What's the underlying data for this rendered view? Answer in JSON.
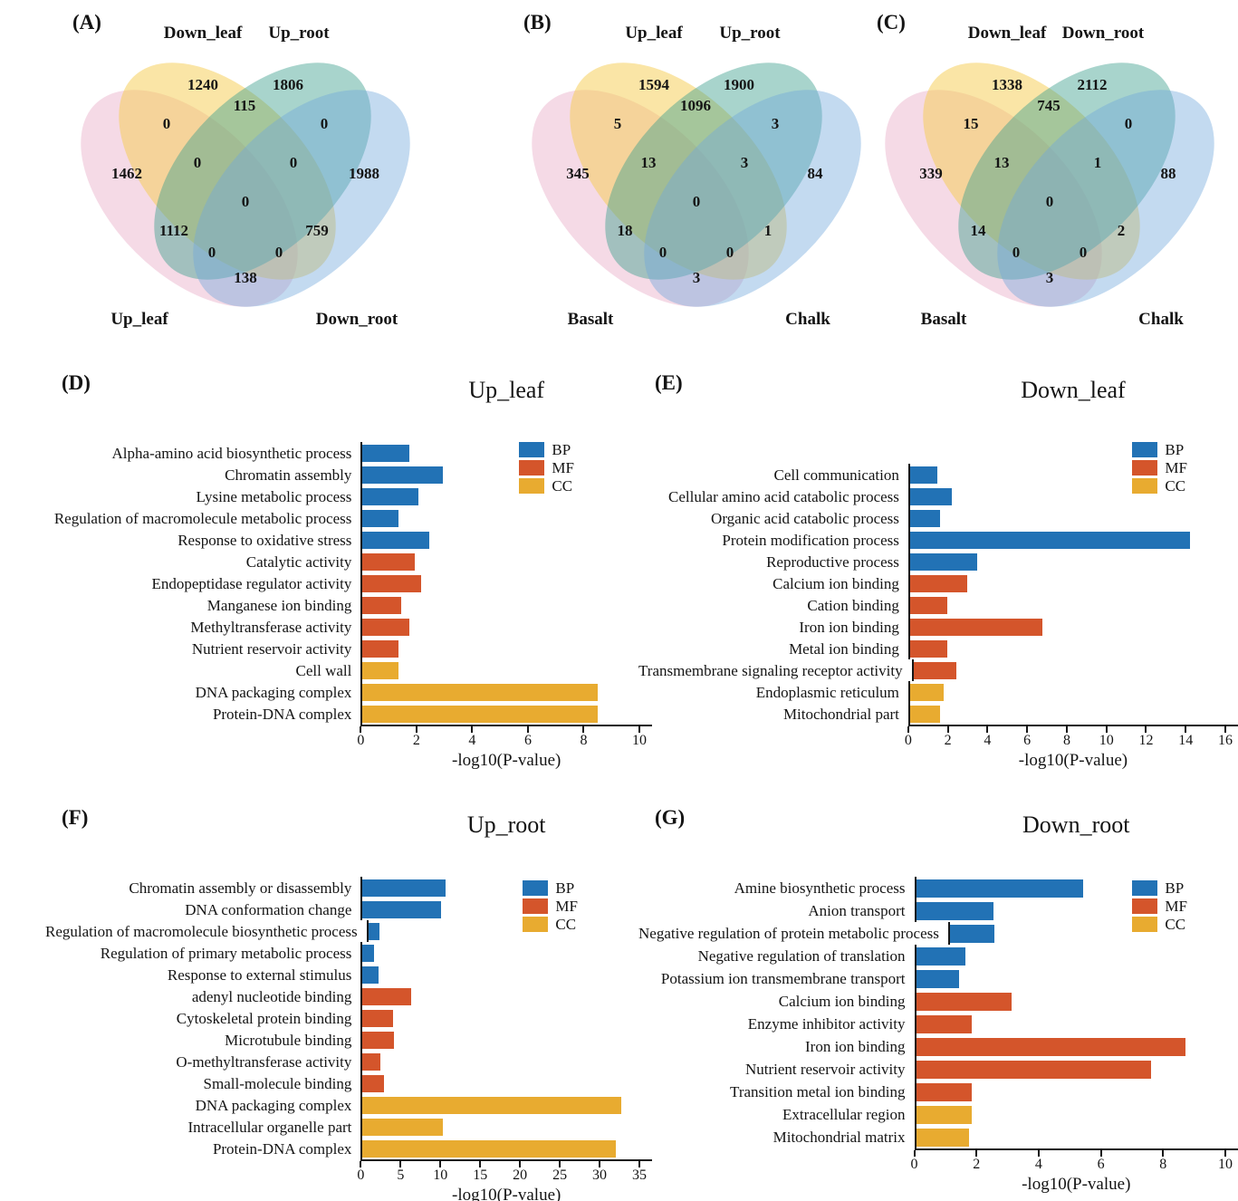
{
  "colors": {
    "BP": "#2272b5",
    "MF": "#d4552b",
    "CC": "#e8ab30",
    "venn": {
      "pink": "#e7a6c4",
      "yellow": "#f5ce55",
      "teal": "#3fa08e",
      "blue": "#6fa8dc"
    }
  },
  "venns": [
    {
      "letter": "(A)",
      "labels": {
        "top_left": "Down_leaf",
        "top_right": "Up_root",
        "bottom_left": "Up_leaf",
        "bottom_right": "Down_root"
      },
      "regions": {
        "tl_only": "1240",
        "tr_only": "1806",
        "tl_tr": "115",
        "bl_tl": "0",
        "tr_br": "0",
        "bl_only": "1462",
        "bl_tl_tr": "0",
        "tl_tr_br": "0",
        "br_only": "1988",
        "all": "0",
        "bl_tr": "1112",
        "tl_br": "759",
        "bl_tr_br": "0",
        "bl_tl_br": "0",
        "bl_br": "138"
      }
    },
    {
      "letter": "(B)",
      "labels": {
        "top_left": "Up_leaf",
        "top_right": "Up_root",
        "bottom_left": "Basalt",
        "bottom_right": "Chalk"
      },
      "regions": {
        "tl_only": "1594",
        "tr_only": "1900",
        "tl_tr": "1096",
        "bl_tl": "5",
        "tr_br": "3",
        "bl_only": "345",
        "bl_tl_tr": "13",
        "tl_tr_br": "3",
        "br_only": "84",
        "all": "0",
        "bl_tr": "18",
        "tl_br": "1",
        "bl_tr_br": "0",
        "bl_tl_br": "0",
        "bl_br": "3"
      }
    },
    {
      "letter": "(C)",
      "labels": {
        "top_left": "Down_leaf",
        "top_right": "Down_root",
        "bottom_left": "Basalt",
        "bottom_right": "Chalk"
      },
      "regions": {
        "tl_only": "1338",
        "tr_only": "2112",
        "tl_tr": "745",
        "bl_tl": "15",
        "tr_br": "0",
        "bl_only": "339",
        "bl_tl_tr": "13",
        "tl_tr_br": "1",
        "br_only": "88",
        "all": "0",
        "bl_tr": "14",
        "tl_br": "2",
        "bl_tr_br": "0",
        "bl_tl_br": "0",
        "bl_br": "3"
      }
    }
  ],
  "chart_data": [
    {
      "type": "bar",
      "panel": "(D)",
      "title": "Up_leaf",
      "xlabel": "-log10(P-value)",
      "xlim": [
        0,
        10
      ],
      "xticks": [
        0,
        2,
        4,
        6,
        8,
        10
      ],
      "legend": [
        "BP",
        "MF",
        "CC"
      ],
      "legend_position": "top-right",
      "categories": [
        "Alpha-amino acid biosynthetic process",
        "Chromatin assembly",
        "Lysine metabolic process",
        "Regulation of macromolecule metabolic process",
        "Response to oxidative stress",
        "Catalytic activity",
        "Endopeptidase regulator activity",
        "Manganese ion binding",
        "Methyltransferase activity",
        "Nutrient reservoir activity",
        "Cell wall",
        "DNA packaging complex",
        "Protein-DNA complex"
      ],
      "values": [
        1.7,
        2.9,
        2.0,
        1.3,
        2.4,
        1.9,
        2.1,
        1.4,
        1.7,
        1.3,
        1.3,
        8.5,
        8.5
      ],
      "groups": [
        "BP",
        "BP",
        "BP",
        "BP",
        "BP",
        "MF",
        "MF",
        "MF",
        "MF",
        "MF",
        "CC",
        "CC",
        "CC"
      ]
    },
    {
      "type": "bar",
      "panel": "(E)",
      "title": "Down_leaf",
      "xlabel": "-log10(P-value)",
      "xlim": [
        0,
        16
      ],
      "xticks": [
        0,
        2,
        4,
        6,
        8,
        10,
        12,
        14,
        16
      ],
      "legend": [
        "BP",
        "MF",
        "CC"
      ],
      "legend_position": "top-right",
      "categories": [
        "Cell communication",
        "Cellular amino acid catabolic process",
        "Organic acid catabolic process",
        "Protein modification process",
        "Reproductive process",
        "Calcium ion binding",
        "Cation binding",
        "Iron ion binding",
        "Metal ion binding",
        "Transmembrane signaling receptor activity",
        "Endoplasmic reticulum",
        "Mitochondrial part"
      ],
      "values": [
        1.4,
        2.1,
        1.5,
        14.2,
        3.4,
        2.9,
        1.9,
        6.7,
        1.9,
        2.2,
        1.7,
        1.5
      ],
      "groups": [
        "BP",
        "BP",
        "BP",
        "BP",
        "BP",
        "MF",
        "MF",
        "MF",
        "MF",
        "MF",
        "CC",
        "CC"
      ]
    },
    {
      "type": "bar",
      "panel": "(F)",
      "title": "Up_root",
      "xlabel": "-log10(P-value)",
      "xlim": [
        0,
        35
      ],
      "xticks": [
        0,
        5,
        10,
        15,
        20,
        25,
        30,
        35
      ],
      "legend": [
        "BP",
        "MF",
        "CC"
      ],
      "legend_position": "top-right",
      "categories": [
        "Chromatin assembly or disassembly",
        "DNA conformation change",
        "Regulation of  macromolecule biosynthetic process",
        "Regulation of primary metabolic process",
        "Response to external stimulus",
        "adenyl nucleotide binding",
        "Cytoskeletal protein binding",
        "Microtubule binding",
        "O-methyltransferase activity",
        "Small-molecule binding",
        "DNA packaging complex",
        "Intracellular organelle part",
        "Protein-DNA complex"
      ],
      "values": [
        10.5,
        9.9,
        1.5,
        1.4,
        2.0,
        6.1,
        3.9,
        4.0,
        2.3,
        2.7,
        32.7,
        10.1,
        32.0
      ],
      "groups": [
        "BP",
        "BP",
        "BP",
        "BP",
        "BP",
        "MF",
        "MF",
        "MF",
        "MF",
        "MF",
        "CC",
        "CC",
        "CC"
      ]
    },
    {
      "type": "bar",
      "panel": "(G)",
      "title": "Down_root",
      "xlabel": "-log10(P-value)",
      "xlim": [
        0,
        10
      ],
      "xticks": [
        0,
        2,
        4,
        6,
        8,
        10
      ],
      "legend": [
        "BP",
        "MF",
        "CC"
      ],
      "legend_position": "top-right",
      "categories": [
        "Amine biosynthetic process",
        "Anion transport",
        "Negative regulation of protein metabolic process",
        "Negative regulation of translation",
        "Potassium ion transmembrane transport",
        "Calcium ion binding",
        "Enzyme inhibitor activity",
        "Iron ion binding",
        "Nutrient reservoir activity",
        "Transition metal ion binding",
        "Extracellular region",
        "Mitochondrial matrix"
      ],
      "values": [
        5.4,
        2.5,
        1.6,
        1.6,
        1.4,
        3.1,
        1.8,
        8.7,
        7.6,
        1.8,
        1.8,
        1.7
      ],
      "groups": [
        "BP",
        "BP",
        "BP",
        "BP",
        "BP",
        "MF",
        "MF",
        "MF",
        "MF",
        "MF",
        "CC",
        "CC"
      ]
    }
  ]
}
